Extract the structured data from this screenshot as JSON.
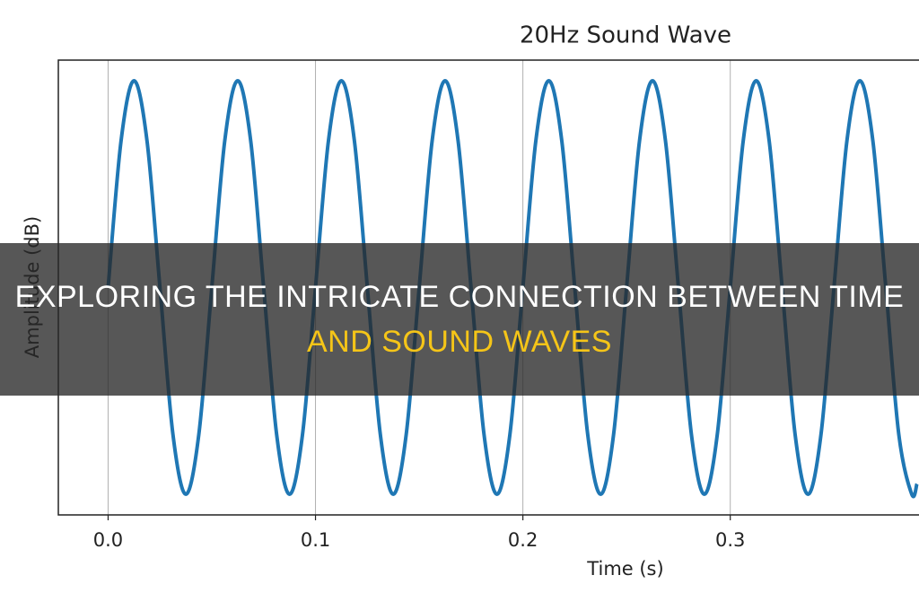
{
  "chart_data": {
    "type": "line",
    "title": "20Hz Sound Wave",
    "x_label": "Time (s)",
    "y_label": "Amplitude (dB)",
    "x": [
      0,
      0.00625,
      0.0125,
      0.01875,
      0.025,
      0.03125,
      0.0375,
      0.04375,
      0.05,
      0.05625,
      0.0625,
      0.06875,
      0.075,
      0.08125,
      0.0875,
      0.09375,
      0.1,
      0.10625,
      0.1125,
      0.11875,
      0.125,
      0.13125,
      0.1375,
      0.14375,
      0.15,
      0.15625,
      0.1625,
      0.16875,
      0.175,
      0.18125,
      0.1875,
      0.19375,
      0.2,
      0.20625,
      0.2125,
      0.21875,
      0.225,
      0.23125,
      0.2375,
      0.24375,
      0.25,
      0.25625,
      0.2625,
      0.26875,
      0.275,
      0.28125,
      0.2875,
      0.29375,
      0.3,
      0.30625,
      0.3125,
      0.31875,
      0.325,
      0.33125,
      0.3375,
      0.34375,
      0.35,
      0.35625,
      0.3625,
      0.36875,
      0.375,
      0.38125,
      0.3875,
      0.39
    ],
    "values": [
      0,
      0.71,
      1,
      0.71,
      0,
      -0.71,
      -1,
      -0.71,
      0,
      0.71,
      1,
      0.71,
      0,
      -0.71,
      -1,
      -0.71,
      0,
      0.71,
      1,
      0.71,
      0,
      -0.71,
      -1,
      -0.71,
      0,
      0.71,
      1,
      0.71,
      0,
      -0.71,
      -1,
      -0.71,
      0,
      0.71,
      1,
      0.71,
      0,
      -0.71,
      -1,
      -0.71,
      0,
      0.71,
      1,
      0.71,
      0,
      -0.71,
      -1,
      -0.71,
      0,
      0.71,
      1,
      0.71,
      0,
      -0.71,
      -1,
      -0.71,
      0,
      0.71,
      1,
      0.71,
      0,
      -0.71,
      -1,
      -0.95
    ],
    "color": "#1f77b4",
    "xlim": [
      -0.024,
      0.391
    ],
    "ylim": [
      -1.1,
      1.1
    ],
    "xticks": [
      {
        "value": 0,
        "label": "0.0"
      },
      0.1,
      0.2,
      0.3
    ],
    "grid": true
  },
  "overlay": {
    "lines": [
      {
        "text": "EXPLORING THE INTRICATE CONNECTION BETWEEN TIME",
        "color": "#ffffff"
      },
      {
        "text": "AND SOUND WAVES",
        "color": "#f5c518"
      }
    ]
  }
}
